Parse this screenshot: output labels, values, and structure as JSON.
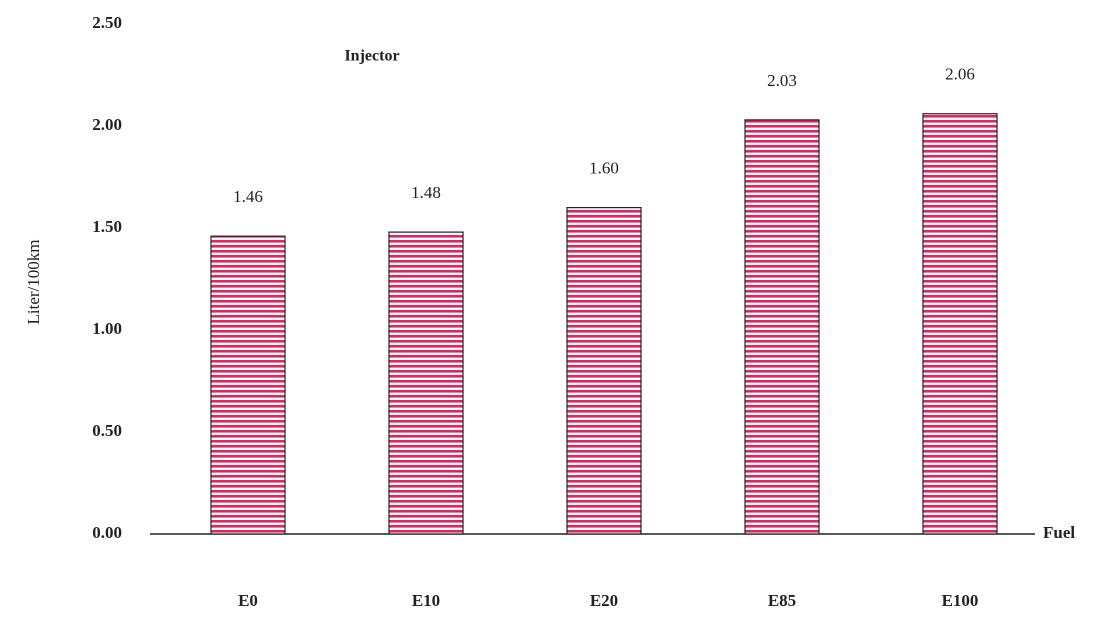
{
  "chart_data": {
    "type": "bar",
    "y_label": "Liter/100km",
    "x_label": "Fuel",
    "annotation": "Injector",
    "categories": [
      "E0",
      "E10",
      "E20",
      "E85",
      "E100"
    ],
    "values": [
      1.46,
      1.48,
      1.6,
      2.03,
      2.06
    ],
    "value_labels": [
      "1.46",
      "1.48",
      "1.60",
      "2.03",
      "2.06"
    ],
    "color": "#e0245e",
    "ylim": [
      0,
      2.5
    ],
    "yticks": [
      {
        "value": 0,
        "label": "0.00"
      },
      {
        "value": 0.5,
        "label": "0.50"
      },
      {
        "value": 1,
        "label": "1.00"
      },
      {
        "value": 1.5,
        "label": "1.50"
      },
      {
        "value": 2,
        "label": "2.00"
      },
      {
        "value": 2.5,
        "label": "2.50"
      }
    ],
    "grid": false
  }
}
